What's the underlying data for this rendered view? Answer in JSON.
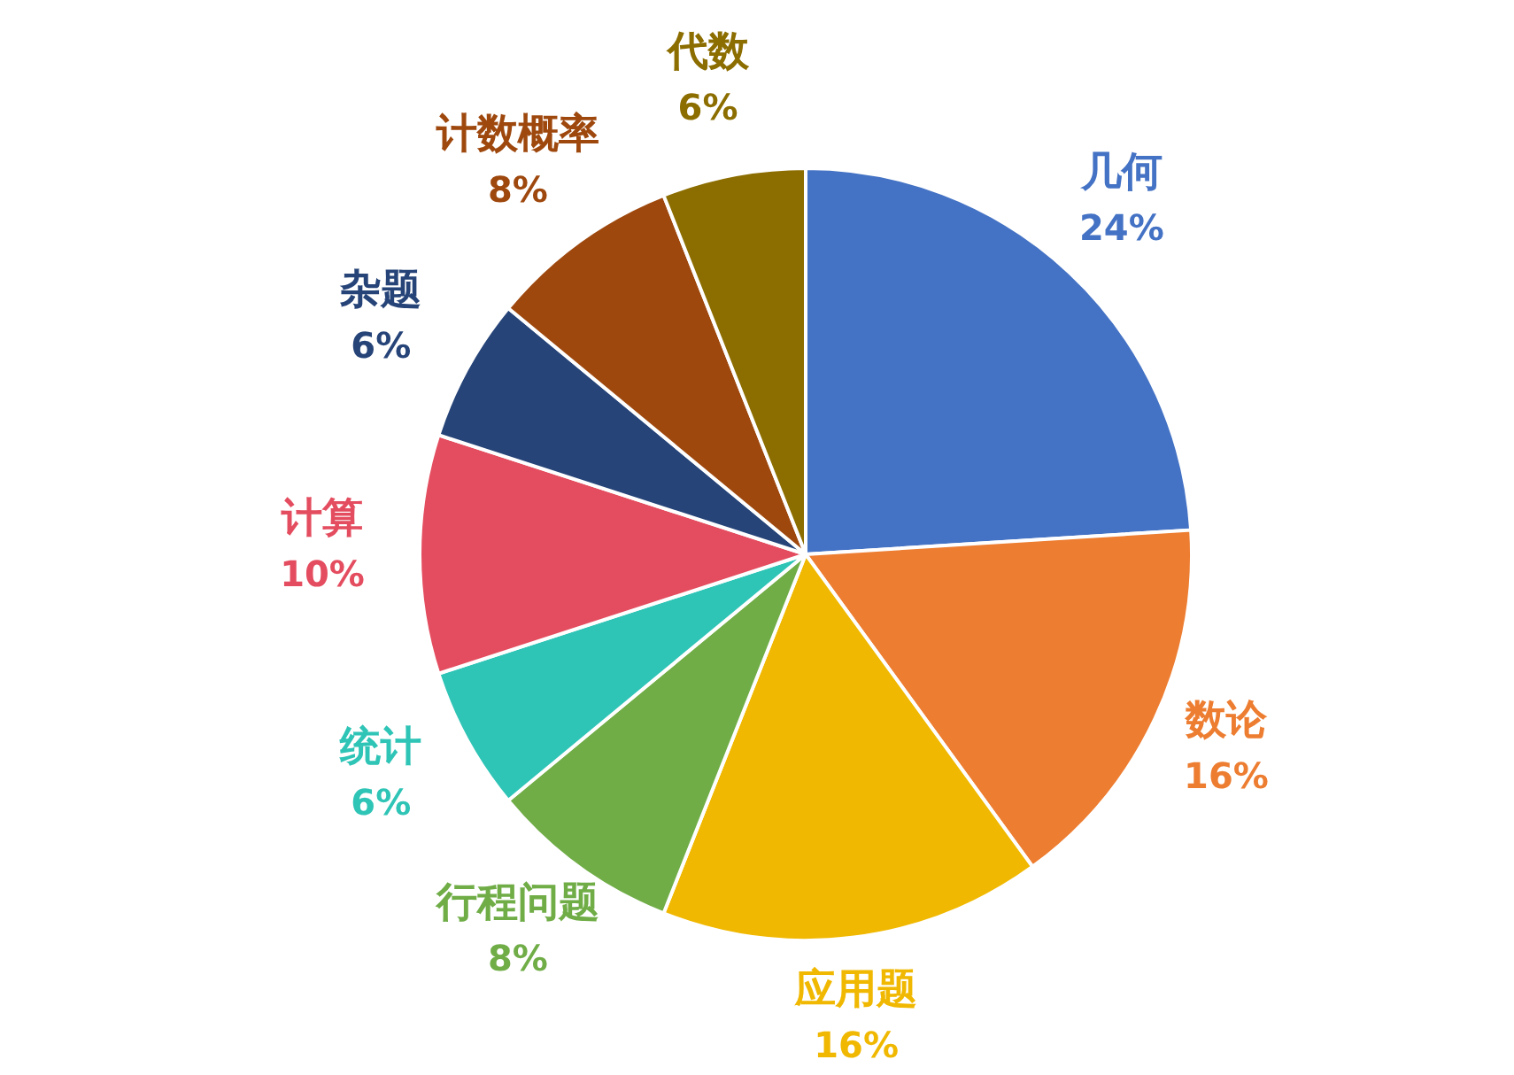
{
  "chart_data": {
    "type": "pie",
    "categories": [
      "几何",
      "数论",
      "应用题",
      "行程问题",
      "统计",
      "计算",
      "杂题",
      "计数概率",
      "代数"
    ],
    "values": [
      24,
      16,
      16,
      8,
      6,
      10,
      6,
      8,
      6
    ],
    "value_labels": [
      "24%",
      "16%",
      "16%",
      "8%",
      "6%",
      "10%",
      "6%",
      "8%",
      "6%"
    ],
    "colors": [
      "#4472c4",
      "#ed7d31",
      "#f0b800",
      "#70ad47",
      "#2ec4b6",
      "#e44d5f",
      "#264478",
      "#9e480e",
      "#8c6d00"
    ],
    "legend": false
  }
}
